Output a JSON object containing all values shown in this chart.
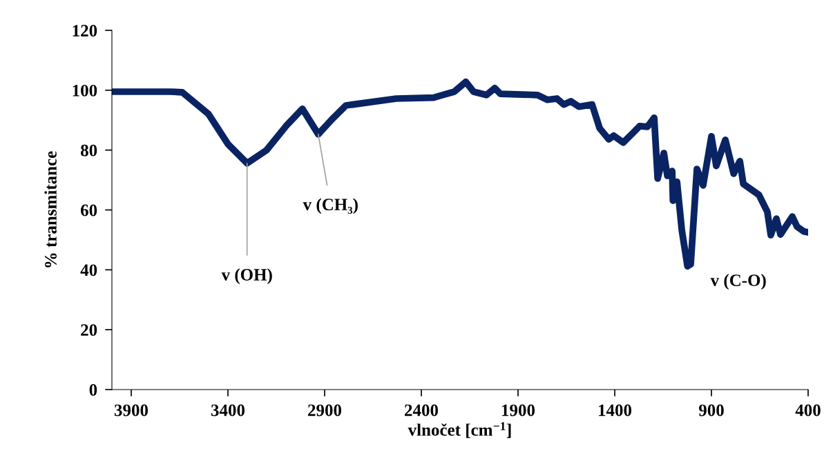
{
  "chart_data": {
    "type": "line",
    "xlabel": "vlnočet [cm$^{−1}$]",
    "ylabel": "% transmitance",
    "x": [
      4000,
      3900,
      3800,
      3700,
      3636,
      3500,
      3400,
      3301,
      3200,
      3100,
      3015,
      2933,
      2862,
      2790,
      2530,
      2337,
      2291,
      2230,
      2170,
      2130,
      2063,
      2020,
      1991,
      1799,
      1749,
      1699,
      1663,
      1627,
      1585,
      1517,
      1478,
      1431,
      1406,
      1356,
      1306,
      1271,
      1231,
      1196,
      1178,
      1146,
      1128,
      1103,
      1099,
      1078,
      1053,
      1024,
      1007,
      975,
      943,
      900,
      875,
      828,
      785,
      753,
      735,
      654,
      611,
      593,
      564,
      543,
      482,
      457,
      422,
      400
    ],
    "series": [
      {
        "color": "#0a2463",
        "values": [
          99.5,
          99.5,
          99.5,
          99.5,
          99.3,
          92,
          82,
          75.6,
          80,
          88,
          93.8,
          85.3,
          90.3,
          94.9,
          97.2,
          97.5,
          98.4,
          99.5,
          102.8,
          99.5,
          98.4,
          100.7,
          98.8,
          98.4,
          96.8,
          97.2,
          95.2,
          96.3,
          94.5,
          95.2,
          87.3,
          83.6,
          84.8,
          82.5,
          85.7,
          88.0,
          87.8,
          90.8,
          70.5,
          79.0,
          71.4,
          73.0,
          63.1,
          69.4,
          53.2,
          41.2,
          41.9,
          73.7,
          68.2,
          84.6,
          74.7,
          83.4,
          72.1,
          76.3,
          68.7,
          65.0,
          59.4,
          51.6,
          57.1,
          51.8,
          57.8,
          54.4,
          52.8,
          52.5
        ]
      }
    ],
    "xlim": [
      4000,
      400
    ],
    "xticks": [
      3900,
      3400,
      2900,
      2400,
      1900,
      1400,
      900,
      400
    ],
    "ylim": [
      0,
      120
    ],
    "yticks": [
      0,
      20,
      40,
      60,
      80,
      100,
      120
    ],
    "grid": false,
    "legend": false,
    "marker": "none",
    "line_style": "solid",
    "annotations": [
      {
        "text": "v (OH)",
        "x": 3301,
        "y": 75.6
      },
      {
        "text": "v (CH₃)",
        "x": 2933,
        "y": 85.3
      },
      "v (C-O)"
    ]
  }
}
